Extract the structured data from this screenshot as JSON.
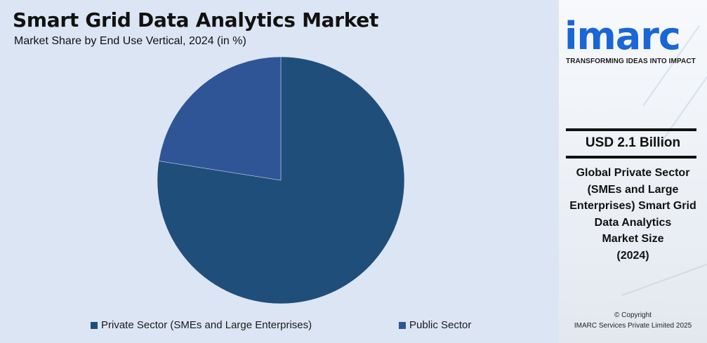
{
  "chart_data": {
    "type": "pie",
    "title": "Smart Grid Data Analytics Market",
    "subtitle": "Market Share by End Use Vertical, 2024 (in %)",
    "slices": [
      {
        "label": "Private Sector (SMEs and Large Enterprises)",
        "value": 77.5,
        "color": "#1f4e7a"
      },
      {
        "label": "Public Sector",
        "value": 22.5,
        "color": "#2f5597"
      }
    ],
    "legend_position": "bottom",
    "start_angle_deg": 0,
    "direction": "clockwise"
  },
  "brand": {
    "logo_text": "imarc",
    "tagline": "TRANSFORMING IDEAS INTO IMPACT",
    "accent_color": "#1a66d6"
  },
  "highlight": {
    "value": "USD 2.1 Billion",
    "description_lines": [
      "Global Private Sector",
      "(SMEs and Large",
      "Enterprises) Smart Grid",
      "Data Analytics",
      "Market Size",
      "(2024)"
    ]
  },
  "footer": {
    "line1": "© Copyright",
    "line2": "IMARC Services Private Limited 2025"
  }
}
